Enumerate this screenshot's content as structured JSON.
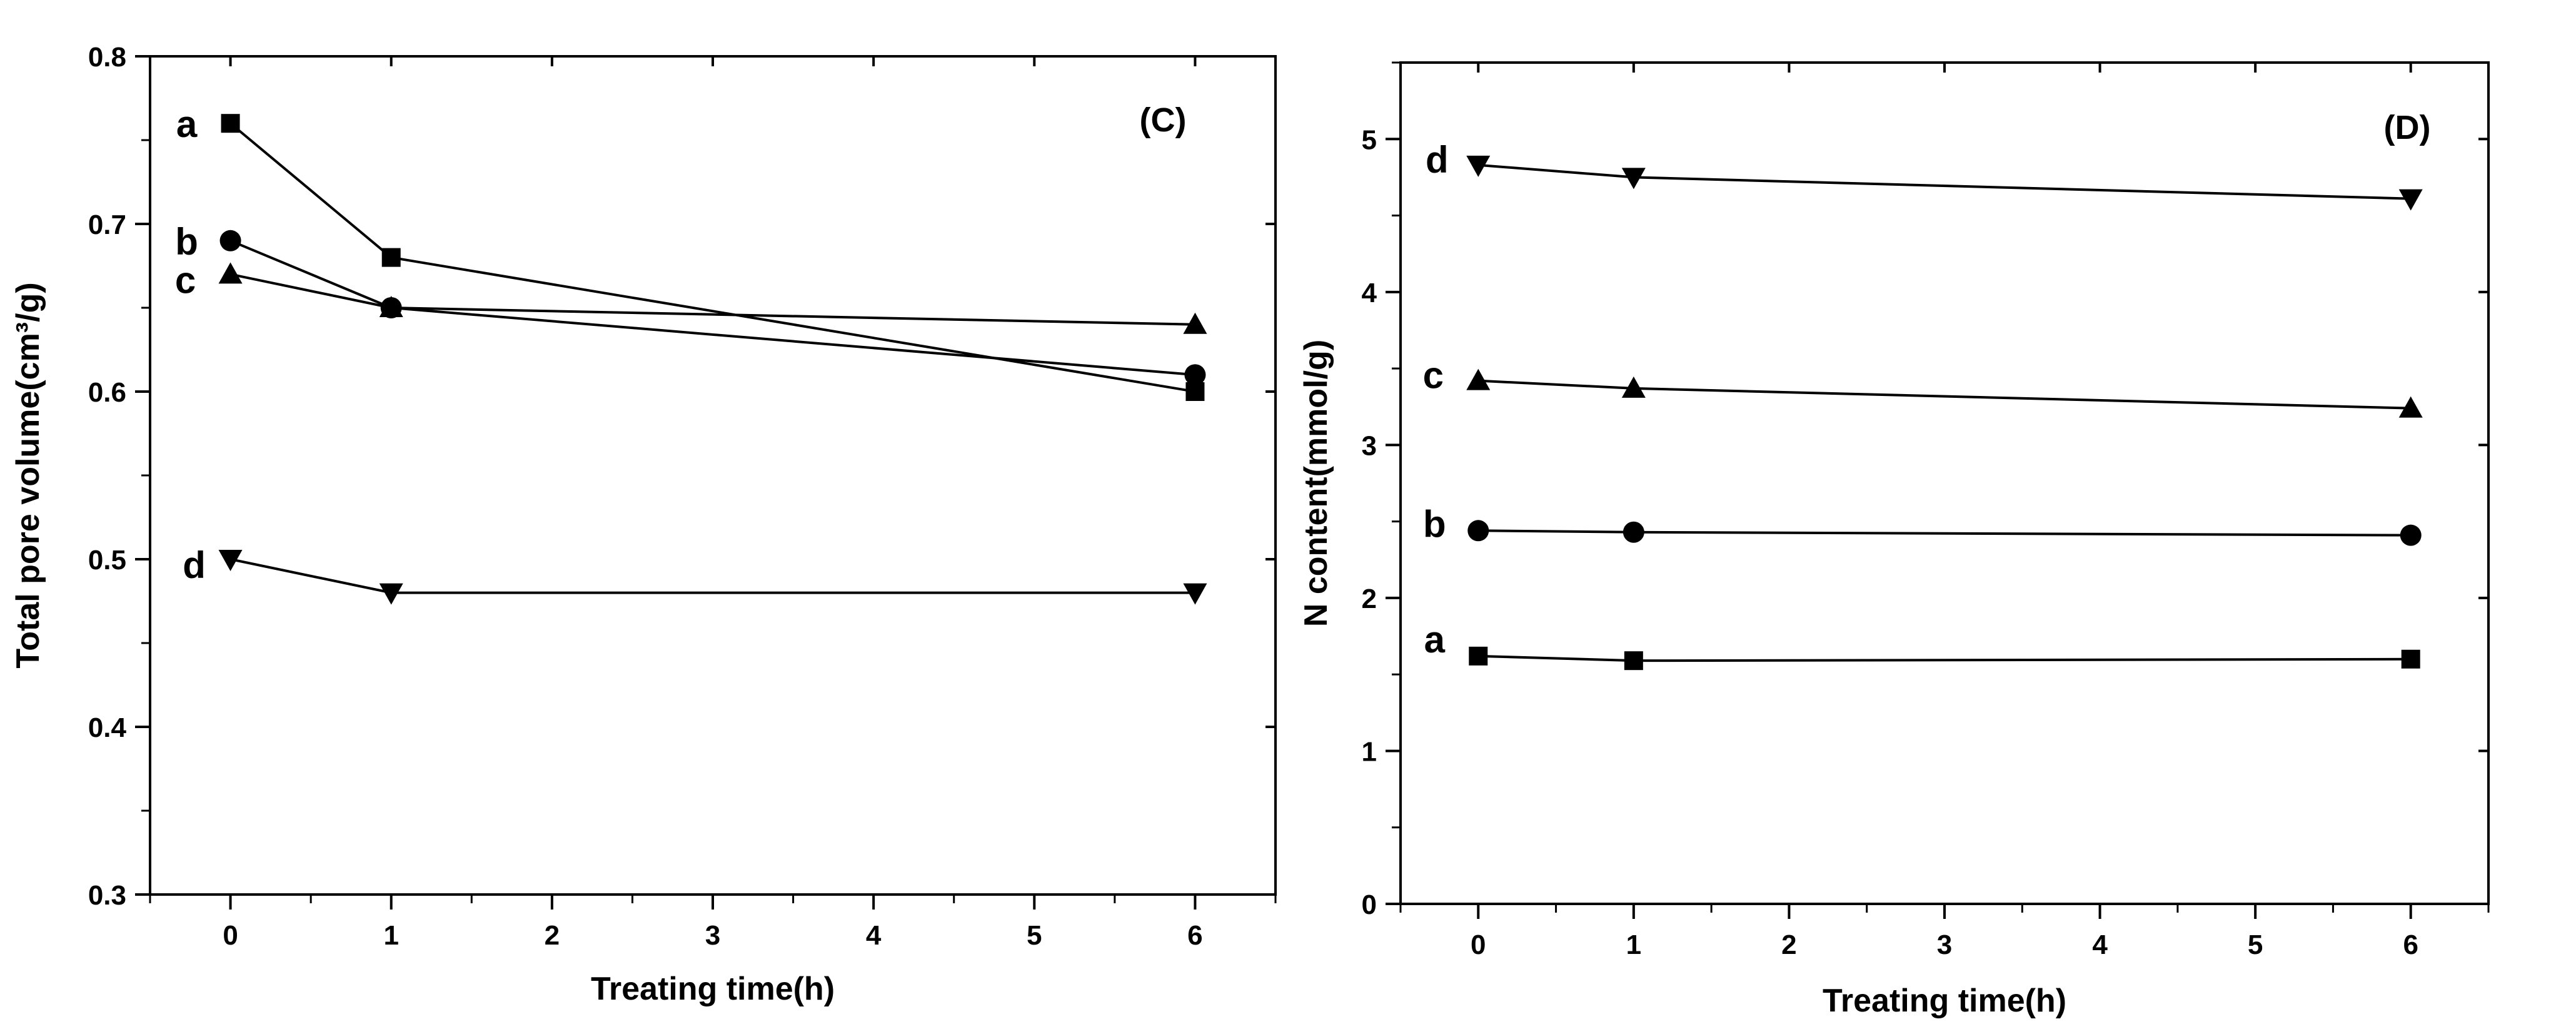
{
  "chart_data": [
    {
      "type": "line",
      "panel_label": "(C)",
      "xlabel": "Treating time(h)",
      "ylabel": "Total pore volume(cm³/g)",
      "xticks": [
        0,
        1,
        2,
        3,
        4,
        5,
        6
      ],
      "yticks": [
        "0.3",
        "0.4",
        "0.5",
        "0.6",
        "0.7",
        "0.8"
      ],
      "xlim": [
        -0.5,
        6.5
      ],
      "ylim": [
        0.3,
        0.8
      ],
      "x": [
        0,
        1,
        6
      ],
      "series": [
        {
          "name": "a",
          "marker": "square",
          "values": [
            0.76,
            0.68,
            0.6
          ]
        },
        {
          "name": "b",
          "marker": "circle",
          "values": [
            0.69,
            0.65,
            0.61
          ]
        },
        {
          "name": "c",
          "marker": "triangle-up",
          "values": [
            0.67,
            0.65,
            0.64
          ]
        },
        {
          "name": "d",
          "marker": "triangle-down",
          "values": [
            0.5,
            0.48,
            0.48
          ]
        }
      ]
    },
    {
      "type": "line",
      "panel_label": "(D)",
      "xlabel": "Treating time(h)",
      "ylabel": "N content(mmol/g)",
      "xticks": [
        0,
        1,
        2,
        3,
        4,
        5,
        6
      ],
      "yticks": [
        "0",
        "1",
        "2",
        "3",
        "4",
        "5"
      ],
      "xlim": [
        -0.5,
        6.5
      ],
      "ylim": [
        0,
        5.5
      ],
      "x": [
        0,
        1,
        6
      ],
      "series": [
        {
          "name": "a",
          "marker": "square",
          "values": [
            1.62,
            1.59,
            1.6
          ]
        },
        {
          "name": "b",
          "marker": "circle",
          "values": [
            2.44,
            2.43,
            2.41
          ]
        },
        {
          "name": "c",
          "marker": "triangle-up",
          "values": [
            3.42,
            3.37,
            3.24
          ]
        },
        {
          "name": "d",
          "marker": "triangle-down",
          "values": [
            4.83,
            4.75,
            4.61
          ]
        }
      ]
    }
  ]
}
